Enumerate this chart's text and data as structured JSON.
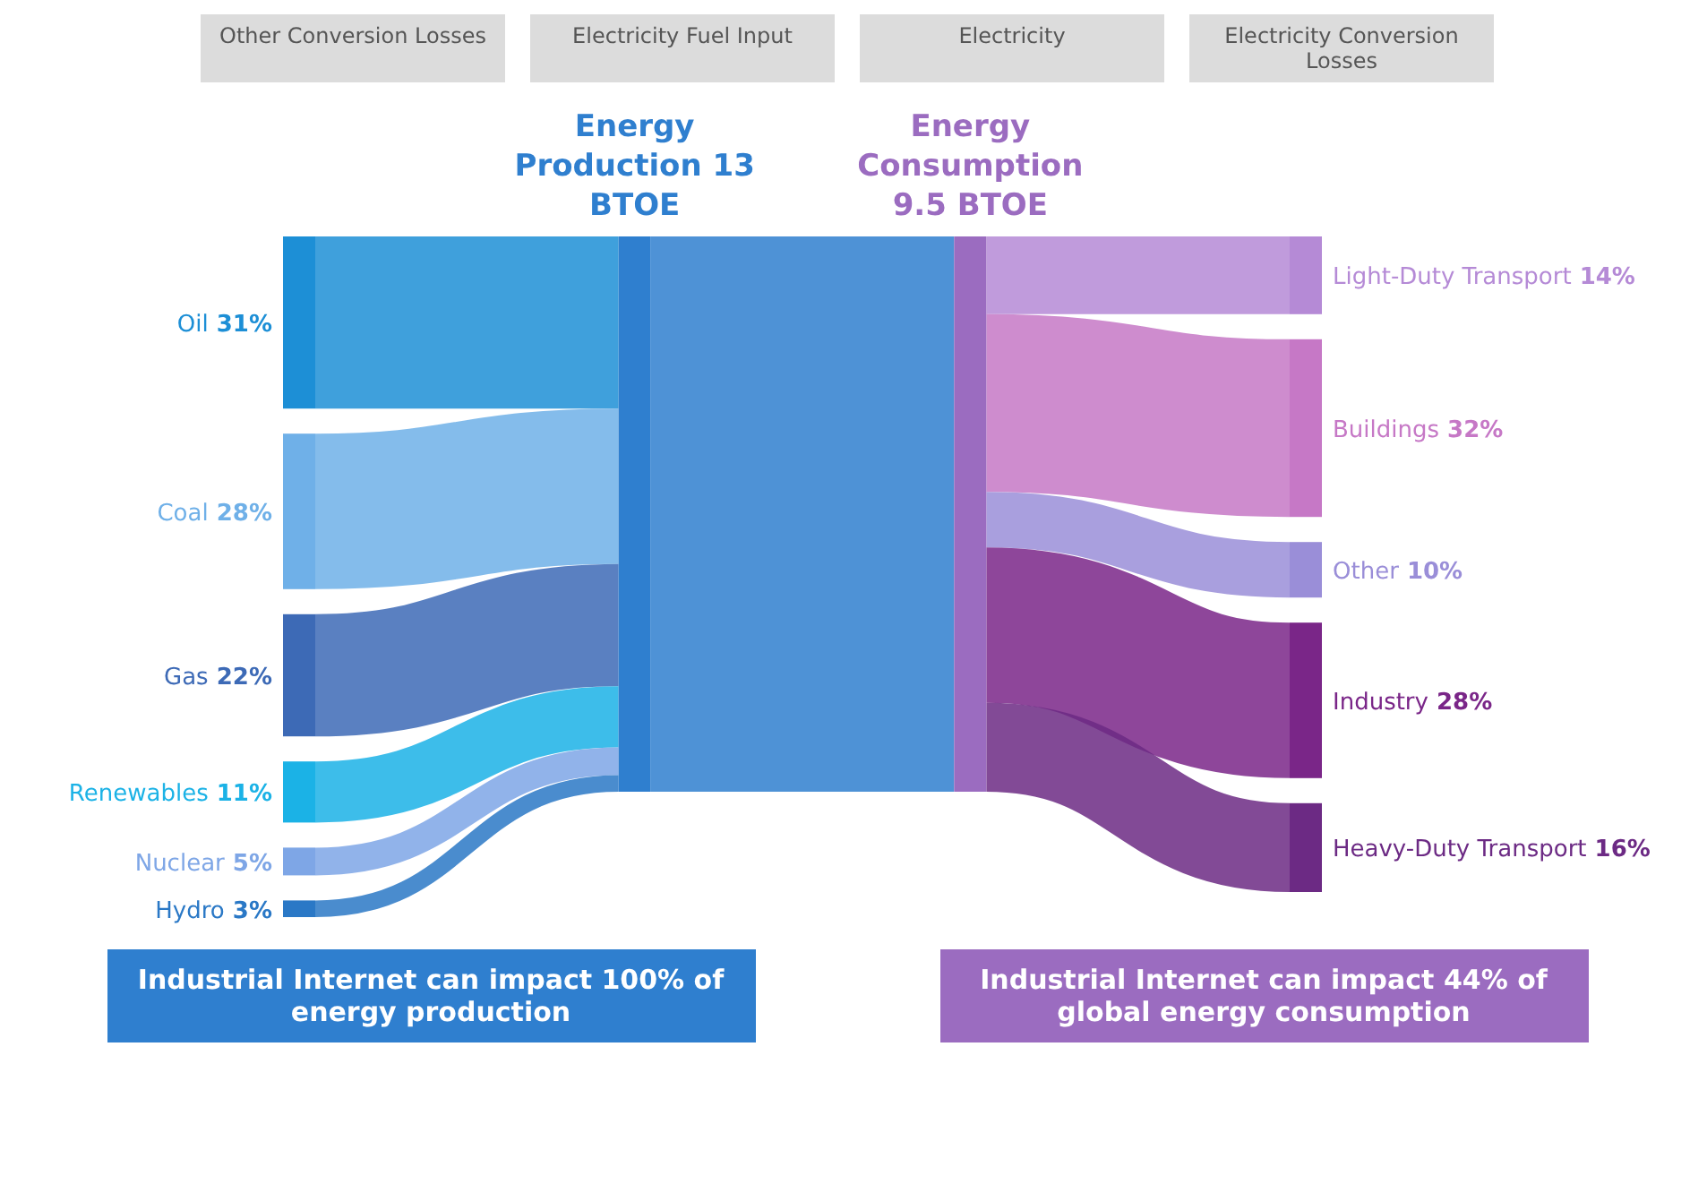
{
  "chart_data": {
    "type": "other",
    "categories": [
      "Oil",
      "Coal",
      "Gas",
      "Renewables",
      "Nuclear",
      "Hydro",
      "Light-Duty Transport",
      "Buildings",
      "Other",
      "Industry",
      "Heavy-Duty Transport"
    ],
    "colors": [
      "#1d8fd6",
      "#6fb0e8",
      "#3d6ab6",
      "#1bb2e6",
      "#7ea6e6",
      "#2a78c6",
      "#b58ad6",
      "#c678c6",
      "#9a8ed8",
      "#7a2688",
      "#6c2a84"
    ],
    "series": [
      {
        "name": "Energy Production 13 BTOE",
        "color": "#2f7fcf",
        "values": [
          31,
          28,
          22,
          11,
          5,
          3,
          null,
          null,
          null,
          null,
          null
        ],
        "value_labels": [
          "31%",
          "28%",
          "22%",
          "11%",
          "5%",
          "3%",
          null,
          null,
          null,
          null,
          null
        ]
      },
      {
        "name": "Energy Consumption 9.5 BTOE",
        "color": "#9b6cc0",
        "values": [
          null,
          null,
          null,
          null,
          null,
          null,
          14,
          32,
          10,
          28,
          16
        ],
        "value_labels": [
          null,
          null,
          null,
          null,
          null,
          null,
          "14%",
          "32%",
          "10%",
          "28%",
          "16%"
        ]
      }
    ],
    "annotations": [
      "Other Conversion Losses",
      "Electricity Fuel Input",
      "Electricity",
      "Electricity Conversion Losses",
      "Industrial Internet can impact 100% of energy production",
      "Industrial Internet can impact 44% of global energy consumption"
    ]
  }
}
